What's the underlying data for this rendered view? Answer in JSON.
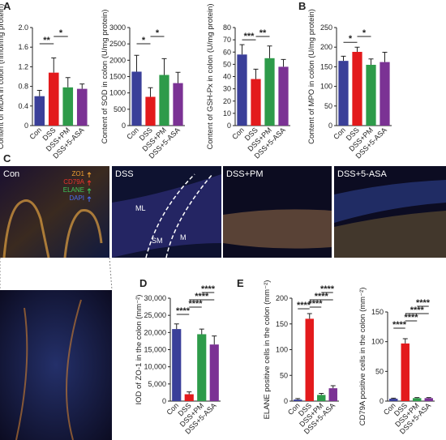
{
  "panel_labels": [
    "A",
    "B",
    "C",
    "D",
    "E"
  ],
  "micrographs": {
    "titles": [
      "Con",
      "DSS",
      "DSS+PM",
      "DSS+5-ASA"
    ],
    "stains": [
      {
        "name": "ZO1",
        "color": "#f0a030"
      },
      {
        "name": "CD79A",
        "color": "#e8342c"
      },
      {
        "name": "ELANE",
        "color": "#3ec85a"
      },
      {
        "name": "DAPI",
        "color": "#4a6cf0"
      }
    ],
    "layers": [
      "ML",
      "SM",
      "M"
    ]
  },
  "chart_data": [
    {
      "type": "bar",
      "ylabel": "Content of MDA in colon (nmol/mg protein)",
      "categories": [
        "Con",
        "DSS",
        "DSS+PM",
        "DSS+5-ASA"
      ],
      "colors": [
        "#3a3f99",
        "#e31a1c",
        "#2e9b4a",
        "#7b3294"
      ],
      "values": [
        0.6,
        1.08,
        0.78,
        0.75
      ],
      "errors": [
        0.12,
        0.3,
        0.2,
        0.1
      ],
      "ylim": [
        0,
        2.0
      ],
      "yticks": [
        0,
        0.4,
        0.8,
        1.2,
        1.6,
        {
          "value": 2.0,
          "label": "2.0"
        }
      ],
      "significance": [
        {
          "from": "Con",
          "to": "DSS",
          "label": "**"
        },
        {
          "from": "DSS",
          "to": "DSS+PM",
          "label": "*"
        }
      ]
    },
    {
      "type": "bar",
      "ylabel": "Content of SOD in colon (U/mg protein)",
      "categories": [
        "Con",
        "DSS",
        "DSS+PM",
        "DSS+5-ASA"
      ],
      "colors": [
        "#3a3f99",
        "#e31a1c",
        "#2e9b4a",
        "#7b3294"
      ],
      "values": [
        1650,
        880,
        1550,
        1300
      ],
      "errors": [
        500,
        280,
        500,
        330
      ],
      "ylim": [
        0,
        3000
      ],
      "yticks": [
        0,
        500,
        1000,
        1500,
        2000,
        2500,
        3000
      ],
      "significance": [
        {
          "from": "Con",
          "to": "DSS",
          "label": "*"
        },
        {
          "from": "DSS",
          "to": "DSS+PM",
          "label": "*"
        }
      ]
    },
    {
      "type": "bar",
      "ylabel": "Content of GSH-Px in colon (U/mg protein)",
      "categories": [
        "Con",
        "DSS",
        "DSS+PM",
        "DSS+5-ASA"
      ],
      "colors": [
        "#3a3f99",
        "#e31a1c",
        "#2e9b4a",
        "#7b3294"
      ],
      "values": [
        58,
        38,
        55,
        48
      ],
      "errors": [
        8,
        8,
        10,
        6
      ],
      "ylim": [
        0,
        80
      ],
      "yticks": [
        0,
        10,
        20,
        30,
        40,
        50,
        60,
        70,
        80
      ],
      "significance": [
        {
          "from": "Con",
          "to": "DSS",
          "label": "***"
        },
        {
          "from": "DSS",
          "to": "DSS+PM",
          "label": "**"
        }
      ]
    },
    {
      "type": "bar",
      "ylabel": "Content of MPO in colon (U/mg protein)",
      "categories": [
        "Con",
        "DSS",
        "DSS+PM",
        "DSS+5-ASA"
      ],
      "colors": [
        "#3a3f99",
        "#e31a1c",
        "#2e9b4a",
        "#7b3294"
      ],
      "values": [
        165,
        188,
        155,
        162
      ],
      "errors": [
        12,
        12,
        15,
        25
      ],
      "ylim": [
        0,
        250
      ],
      "yticks": [
        0,
        50,
        100,
        150,
        200,
        250
      ],
      "significance": [
        {
          "from": "Con",
          "to": "DSS",
          "label": "*"
        },
        {
          "from": "DSS",
          "to": "DSS+PM",
          "label": "*"
        }
      ]
    },
    {
      "type": "bar",
      "ylabel": "IOD of ZO-1 in the colon (mm⁻²)",
      "categories": [
        "Con",
        "DSS",
        "DSS+PM",
        "DSS+5-ASA"
      ],
      "colors": [
        "#3a3f99",
        "#e31a1c",
        "#2e9b4a",
        "#7b3294"
      ],
      "values": [
        21000,
        2000,
        19500,
        16500
      ],
      "errors": [
        1500,
        700,
        1500,
        2500
      ],
      "ylim": [
        0,
        30000
      ],
      "yticks": [
        0,
        {
          "value": 5000,
          "label": "5,000"
        },
        {
          "value": 10000,
          "label": "10,000"
        },
        {
          "value": 15000,
          "label": "15,000"
        },
        {
          "value": 20000,
          "label": "20,000"
        },
        {
          "value": 25000,
          "label": "25,000"
        },
        {
          "value": 30000,
          "label": "30,000"
        }
      ],
      "significance": [
        {
          "from": "Con",
          "to": "DSS",
          "label": "****"
        },
        {
          "from": "DSS",
          "to": "DSS+PM",
          "label": "****"
        },
        {
          "from": "DSS",
          "to": "DSS+5-ASA",
          "label": "****"
        },
        {
          "from": "DSS+PM",
          "to": "DSS+5-ASA",
          "label": "****"
        }
      ]
    },
    {
      "type": "bar",
      "ylabel": "ELANE positive cells in the colon (mm⁻²)",
      "categories": [
        "Con",
        "DSS",
        "DSS+PM",
        "DSS+5-ASA"
      ],
      "colors": [
        "#3a3f99",
        "#e31a1c",
        "#2e9b4a",
        "#7b3294"
      ],
      "values": [
        3,
        160,
        12,
        25
      ],
      "errors": [
        2,
        10,
        3,
        5
      ],
      "ylim": [
        0,
        200
      ],
      "yticks": [
        0,
        50,
        100,
        150,
        200
      ],
      "significance": [
        {
          "from": "Con",
          "to": "DSS",
          "label": "****"
        },
        {
          "from": "DSS",
          "to": "DSS+PM",
          "label": "****"
        },
        {
          "from": "DSS",
          "to": "DSS+5-ASA",
          "label": "****"
        },
        {
          "from": "DSS+PM",
          "to": "DSS+5-ASA",
          "label": "****"
        }
      ]
    },
    {
      "type": "bar",
      "ylabel": "CD79A positive cells in the colon (mm⁻²)",
      "categories": [
        "Con",
        "DSS",
        "DSS+PM",
        "DSS+5-ASA"
      ],
      "colors": [
        "#3a3f99",
        "#e31a1c",
        "#2e9b4a",
        "#7b3294"
      ],
      "values": [
        4,
        97,
        5,
        5
      ],
      "errors": [
        1,
        8,
        1,
        1
      ],
      "ylim": [
        0,
        150
      ],
      "yticks": [
        0,
        50,
        100,
        150
      ],
      "significance": [
        {
          "from": "Con",
          "to": "DSS",
          "label": "****"
        },
        {
          "from": "DSS",
          "to": "DSS+PM",
          "label": "****"
        },
        {
          "from": "DSS",
          "to": "DSS+5-ASA",
          "label": "****"
        },
        {
          "from": "DSS+PM",
          "to": "DSS+5-ASA",
          "label": "****"
        }
      ]
    }
  ]
}
